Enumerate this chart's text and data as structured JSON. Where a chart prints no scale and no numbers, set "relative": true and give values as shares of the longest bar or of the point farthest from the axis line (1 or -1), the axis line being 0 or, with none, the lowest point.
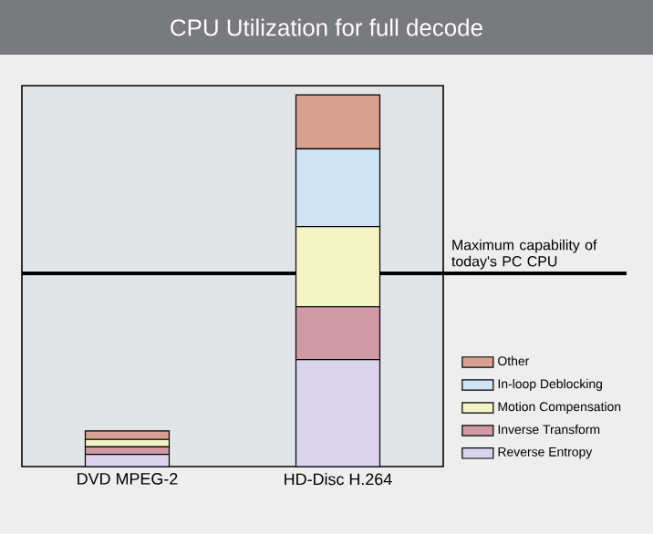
{
  "chart_data": {
    "type": "bar",
    "title": "CPU Utilization for full decode",
    "categories": [
      "DVD MPEG-2",
      "HD-Disc H.264"
    ],
    "stacked": true,
    "relative": true,
    "legend": "right",
    "series": [
      {
        "name": "Reverse Entropy",
        "color": "#d9d3ec",
        "values": [
          0.033,
          0.288
        ]
      },
      {
        "name": "Inverse Transform",
        "color": "#cf9aa4",
        "values": [
          0.02,
          0.142
        ]
      },
      {
        "name": "Motion Compensation",
        "color": "#f3f3c6",
        "values": [
          0.02,
          0.216
        ]
      },
      {
        "name": "In-loop Deblocking",
        "color": "#cfe3f5",
        "values": [
          0,
          0.209
        ]
      },
      {
        "name": "Other",
        "color": "#d8a090",
        "values": [
          0.023,
          0.145
        ]
      }
    ],
    "ref_lines": [
      {
        "axis": "y",
        "value": 0.52,
        "label": "Maximum capability of today's PC CPU",
        "color": "#000000"
      }
    ]
  }
}
